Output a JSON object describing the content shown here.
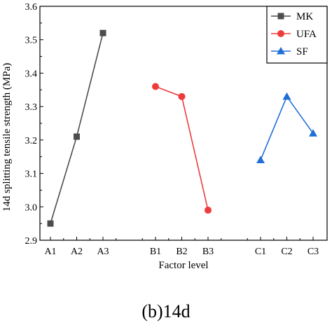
{
  "chart_data": {
    "type": "line",
    "xlabel": "Factor level",
    "ylabel": "14d splitting tensile strength (MPa)",
    "ylim": [
      2.9,
      3.6
    ],
    "yticks": [
      "2.9",
      "3.0",
      "3.1",
      "3.2",
      "3.3",
      "3.4",
      "3.5",
      "3.6"
    ],
    "categories": [
      "A1",
      "A2",
      "A3",
      "B1",
      "B2",
      "B3",
      "C1",
      "C2",
      "C3"
    ],
    "grid": false,
    "legend_position": "top-right",
    "series": [
      {
        "name": "MK",
        "color": "#4d4d4d",
        "marker": "square",
        "x": [
          "A1",
          "A2",
          "A3"
        ],
        "values": [
          2.95,
          3.21,
          3.52
        ]
      },
      {
        "name": "UFA",
        "color": "#ee3b3b",
        "marker": "circle",
        "x": [
          "B1",
          "B2",
          "B3"
        ],
        "values": [
          3.36,
          3.33,
          2.99
        ]
      },
      {
        "name": "SF",
        "color": "#1f6fd6",
        "marker": "triangle",
        "x": [
          "C1",
          "C2",
          "C3"
        ],
        "values": [
          3.14,
          3.33,
          3.22
        ]
      }
    ]
  },
  "caption": "(b)14d"
}
